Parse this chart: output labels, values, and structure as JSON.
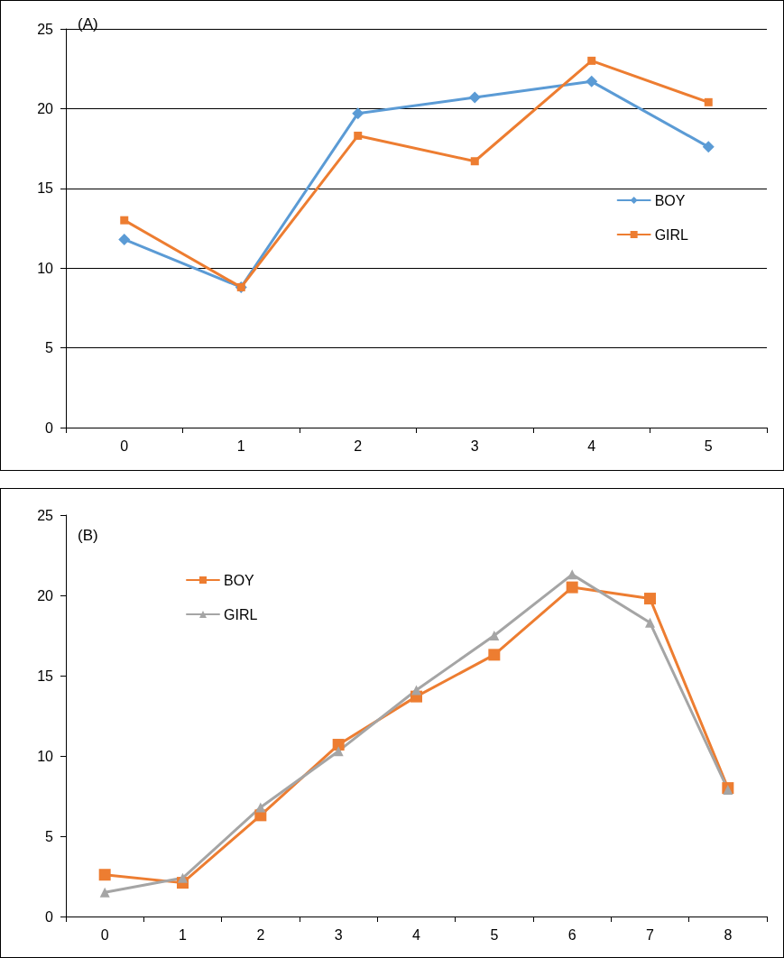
{
  "chart_data": [
    {
      "type": "line",
      "title": "(A)",
      "categories": [
        "0",
        "1",
        "2",
        "3",
        "4",
        "5"
      ],
      "ylim": [
        0,
        25
      ],
      "yticks": [
        0,
        5,
        10,
        15,
        20,
        25
      ],
      "grid": "y",
      "legend": "right",
      "series": [
        {
          "name": "BOY",
          "color": "#5b9bd5",
          "marker": "diamond",
          "values": [
            11.8,
            8.8,
            19.7,
            20.7,
            21.7,
            17.6
          ]
        },
        {
          "name": "GIRL",
          "color": "#ed7d31",
          "marker": "square",
          "values": [
            13.0,
            8.8,
            18.3,
            16.7,
            23.0,
            20.4
          ]
        }
      ]
    },
    {
      "type": "line",
      "title": "(B)",
      "categories": [
        "0",
        "1",
        "2",
        "3",
        "4",
        "5",
        "6",
        "7",
        "8"
      ],
      "ylim": [
        0,
        25
      ],
      "yticks": [
        0,
        5,
        10,
        15,
        20,
        25
      ],
      "legend": "top left",
      "series": [
        {
          "name": "BOY",
          "color": "#ed7d31",
          "marker": "square",
          "values": [
            2.6,
            2.1,
            6.3,
            10.7,
            13.7,
            16.3,
            20.5,
            19.8,
            8.0
          ]
        },
        {
          "name": "GIRL",
          "color": "#a5a5a5",
          "marker": "triangle",
          "values": [
            1.5,
            2.4,
            6.8,
            10.3,
            14.1,
            17.5,
            21.3,
            18.3,
            7.9
          ]
        }
      ]
    }
  ]
}
